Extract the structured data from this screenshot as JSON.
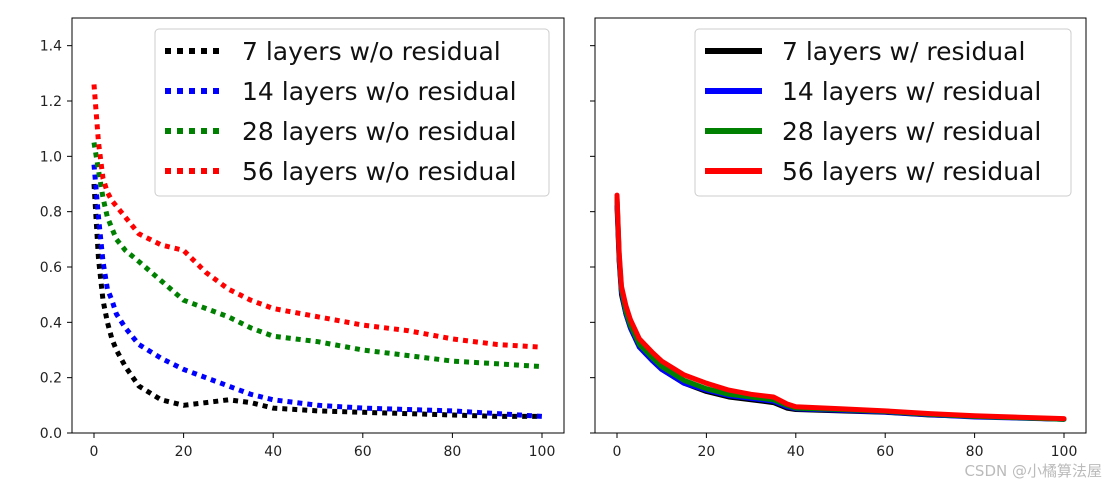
{
  "watermark": "CSDN @小橘算法屋",
  "chart_data": [
    {
      "type": "line",
      "line_style": "dotted",
      "xlim": [
        0,
        100
      ],
      "ylim": [
        0.0,
        1.5
      ],
      "x_ticks": [
        0,
        20,
        40,
        60,
        80,
        100
      ],
      "y_ticks": [
        0.0,
        0.2,
        0.4,
        0.6,
        0.8,
        1.0,
        1.2,
        1.4
      ],
      "y_tick_labels": [
        "0.0",
        "0.2",
        "0.4",
        "0.6",
        "0.8",
        "1.0",
        "1.2",
        "1.4"
      ],
      "legend_placement": "top-right",
      "x": [
        0,
        1,
        2,
        3,
        4,
        5,
        7,
        10,
        15,
        20,
        25,
        30,
        35,
        40,
        50,
        60,
        70,
        80,
        90,
        100
      ],
      "series": [
        {
          "name": "7 layers w/o residual",
          "color": "#000000",
          "values": [
            0.9,
            0.63,
            0.48,
            0.4,
            0.34,
            0.3,
            0.24,
            0.17,
            0.12,
            0.1,
            0.11,
            0.12,
            0.11,
            0.09,
            0.08,
            0.075,
            0.07,
            0.065,
            0.06,
            0.06
          ]
        },
        {
          "name": "14 layers w/o residual",
          "color": "#0000ff",
          "values": [
            0.97,
            0.78,
            0.62,
            0.52,
            0.48,
            0.43,
            0.38,
            0.32,
            0.27,
            0.23,
            0.2,
            0.17,
            0.14,
            0.12,
            0.1,
            0.09,
            0.085,
            0.08,
            0.07,
            0.06
          ]
        },
        {
          "name": "28 layers w/o residual",
          "color": "#008000",
          "values": [
            1.05,
            0.95,
            0.85,
            0.78,
            0.74,
            0.7,
            0.66,
            0.62,
            0.55,
            0.48,
            0.45,
            0.42,
            0.38,
            0.35,
            0.33,
            0.3,
            0.28,
            0.26,
            0.25,
            0.24
          ]
        },
        {
          "name": "56 layers w/o residual",
          "color": "#ff0000",
          "values": [
            1.26,
            1.05,
            0.92,
            0.87,
            0.84,
            0.82,
            0.78,
            0.72,
            0.68,
            0.66,
            0.58,
            0.52,
            0.48,
            0.45,
            0.42,
            0.39,
            0.37,
            0.34,
            0.32,
            0.31
          ]
        }
      ]
    },
    {
      "type": "line",
      "line_style": "solid",
      "xlim": [
        0,
        100
      ],
      "ylim": [
        0.0,
        1.5
      ],
      "x_ticks": [
        0,
        20,
        40,
        60,
        80,
        100
      ],
      "y_ticks": [
        0.0,
        0.2,
        0.4,
        0.6,
        0.8,
        1.0,
        1.2,
        1.4
      ],
      "y_tick_labels_shown": false,
      "legend_placement": "top-right",
      "x": [
        0,
        0.5,
        1,
        2,
        3,
        5,
        8,
        10,
        15,
        20,
        25,
        30,
        35,
        38,
        40,
        50,
        60,
        70,
        80,
        90,
        100
      ],
      "series": [
        {
          "name": "7 layers w/ residual",
          "color": "#000000",
          "values": [
            0.82,
            0.62,
            0.5,
            0.43,
            0.38,
            0.31,
            0.26,
            0.23,
            0.18,
            0.15,
            0.13,
            0.12,
            0.11,
            0.09,
            0.085,
            0.08,
            0.075,
            0.065,
            0.06,
            0.055,
            0.05
          ]
        },
        {
          "name": "14 layers w/ residual",
          "color": "#0000ff",
          "values": [
            0.84,
            0.63,
            0.51,
            0.43,
            0.38,
            0.31,
            0.26,
            0.23,
            0.18,
            0.155,
            0.135,
            0.125,
            0.115,
            0.095,
            0.088,
            0.082,
            0.076,
            0.066,
            0.058,
            0.054,
            0.05
          ]
        },
        {
          "name": "28 layers w/ residual",
          "color": "#008000",
          "values": [
            0.85,
            0.64,
            0.52,
            0.44,
            0.39,
            0.32,
            0.27,
            0.24,
            0.19,
            0.16,
            0.14,
            0.13,
            0.12,
            0.1,
            0.09,
            0.085,
            0.078,
            0.068,
            0.06,
            0.055,
            0.05
          ]
        },
        {
          "name": "56 layers w/ residual",
          "color": "#ff0000",
          "values": [
            0.86,
            0.65,
            0.53,
            0.46,
            0.41,
            0.34,
            0.29,
            0.26,
            0.21,
            0.18,
            0.155,
            0.14,
            0.13,
            0.105,
            0.095,
            0.088,
            0.08,
            0.07,
            0.062,
            0.057,
            0.052
          ]
        }
      ]
    }
  ]
}
